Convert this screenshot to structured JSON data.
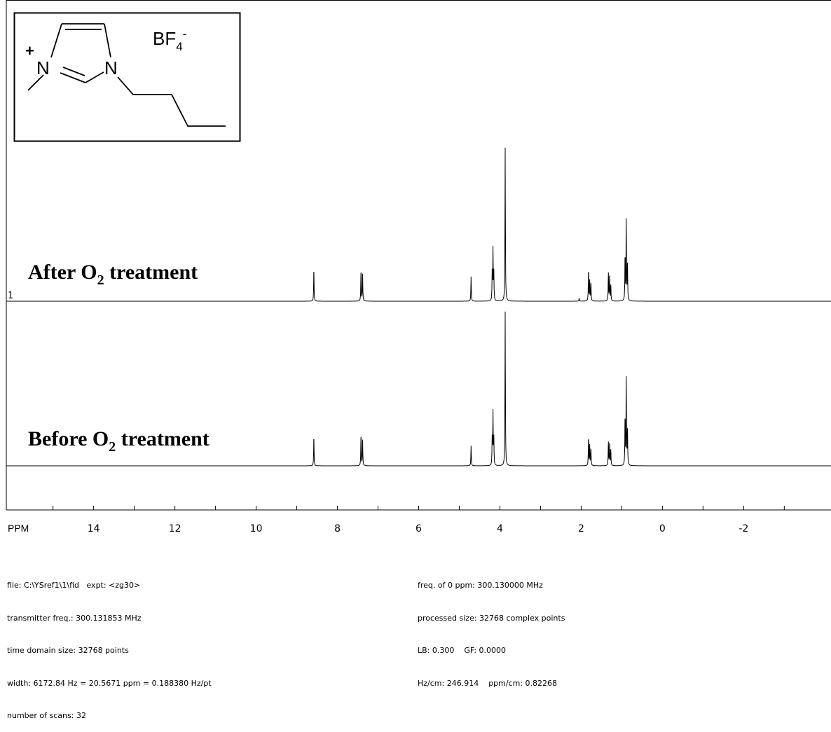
{
  "structure": {
    "charge_plus": "+",
    "atom_n1": "N",
    "atom_n3": "N",
    "anion_text": "BF",
    "anion_sub": "4",
    "anion_sup": "-"
  },
  "footer": {
    "left": [
      "file: C:\\YSref1\\1\\fid   expt: <zg30>",
      "transmitter freq.: 300.131853 MHz",
      "time domain size: 32768 points",
      "width: 6172.84 Hz = 20.5671 ppm = 0.188380 Hz/pt",
      "number of scans: 32"
    ],
    "right": [
      "freq. of 0 ppm: 300.130000 MHz",
      "processed size: 32768 complex points",
      "LB: 0.300    GF: 0.0000",
      "Hz/cm: 246.914    ppm/cm: 0.82268"
    ]
  },
  "chart_data": {
    "type": "line",
    "xlabel": "PPM",
    "x_axis_reversed": true,
    "xlim": [
      16.15,
      -4.15
    ],
    "x_ticks_labeled": [
      14,
      12,
      10,
      8,
      6,
      4,
      2,
      0,
      -2
    ],
    "x_tick_labels": [
      "14",
      "12",
      "10",
      "8",
      "6",
      "4",
      "2",
      "0",
      "-2"
    ],
    "trace_marker": "1",
    "series": [
      {
        "name": "After O2 treatment",
        "label_main": "After O",
        "label_sub": "2",
        "label_rest": " treatment",
        "peaks": [
          {
            "ppm": 8.58,
            "intensity": 0.21
          },
          {
            "ppm": 7.42,
            "intensity": 0.2
          },
          {
            "ppm": 7.38,
            "intensity": 0.19
          },
          {
            "ppm": 4.71,
            "intensity": 0.16
          },
          {
            "ppm": 4.17,
            "intensity": 0.33
          },
          {
            "ppm": 4.15,
            "intensity": 0.18
          },
          {
            "ppm": 4.19,
            "intensity": 0.18
          },
          {
            "ppm": 3.87,
            "intensity": 1.0
          },
          {
            "ppm": 2.05,
            "intensity": 0.02
          },
          {
            "ppm": 1.82,
            "intensity": 0.2
          },
          {
            "ppm": 1.79,
            "intensity": 0.13
          },
          {
            "ppm": 1.76,
            "intensity": 0.12
          },
          {
            "ppm": 1.33,
            "intensity": 0.18
          },
          {
            "ppm": 1.3,
            "intensity": 0.17
          },
          {
            "ppm": 1.27,
            "intensity": 0.1
          },
          {
            "ppm": 0.92,
            "intensity": 0.29
          },
          {
            "ppm": 0.89,
            "intensity": 0.52
          },
          {
            "ppm": 0.86,
            "intensity": 0.25
          }
        ]
      },
      {
        "name": "Before O2 treatment",
        "label_main": "Before O",
        "label_sub": "2",
        "label_rest": " treatment",
        "peaks": [
          {
            "ppm": 8.58,
            "intensity": 0.19
          },
          {
            "ppm": 7.42,
            "intensity": 0.2
          },
          {
            "ppm": 7.38,
            "intensity": 0.18
          },
          {
            "ppm": 4.71,
            "intensity": 0.13
          },
          {
            "ppm": 4.17,
            "intensity": 0.34
          },
          {
            "ppm": 4.15,
            "intensity": 0.17
          },
          {
            "ppm": 4.19,
            "intensity": 0.17
          },
          {
            "ppm": 3.87,
            "intensity": 1.0
          },
          {
            "ppm": 1.82,
            "intensity": 0.18
          },
          {
            "ppm": 1.79,
            "intensity": 0.13
          },
          {
            "ppm": 1.76,
            "intensity": 0.11
          },
          {
            "ppm": 1.33,
            "intensity": 0.15
          },
          {
            "ppm": 1.3,
            "intensity": 0.15
          },
          {
            "ppm": 1.27,
            "intensity": 0.1
          },
          {
            "ppm": 0.92,
            "intensity": 0.31
          },
          {
            "ppm": 0.89,
            "intensity": 0.56
          },
          {
            "ppm": 0.86,
            "intensity": 0.24
          }
        ]
      }
    ]
  }
}
